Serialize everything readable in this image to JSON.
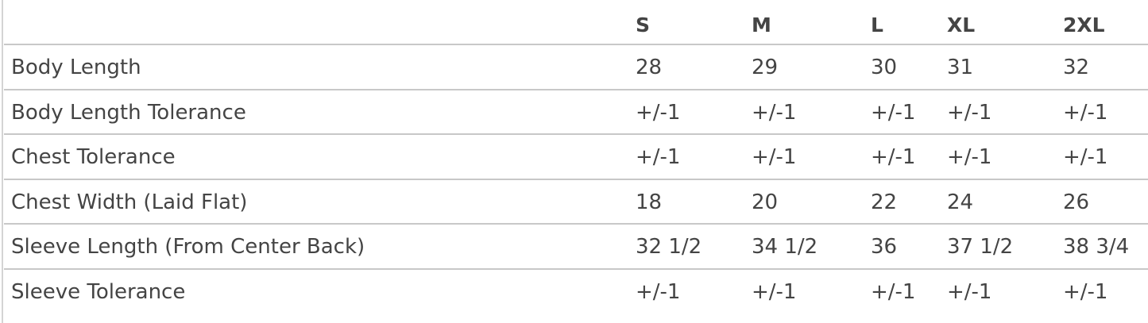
{
  "table": {
    "headers": [
      "",
      "S",
      "M",
      "L",
      "XL",
      "2XL"
    ],
    "rows": [
      [
        "Body Length",
        "28",
        "29",
        "30",
        "31",
        "32"
      ],
      [
        "Body Length Tolerance",
        "+/-1",
        "+/-1",
        "+/-1",
        "+/-1",
        "+/-1"
      ],
      [
        "Chest Tolerance",
        "+/-1",
        "+/-1",
        "+/-1",
        "+/-1",
        "+/-1"
      ],
      [
        "Chest Width (Laid Flat)",
        "18",
        "20",
        "22",
        "24",
        "26"
      ],
      [
        "Sleeve Length (From Center Back)",
        "32 1/2",
        "34 1/2",
        "36",
        "37 1/2",
        "38 3/4"
      ],
      [
        "Sleeve Tolerance",
        "+/-1",
        "+/-1",
        "+/-1",
        "+/-1",
        "+/-1"
      ]
    ]
  }
}
